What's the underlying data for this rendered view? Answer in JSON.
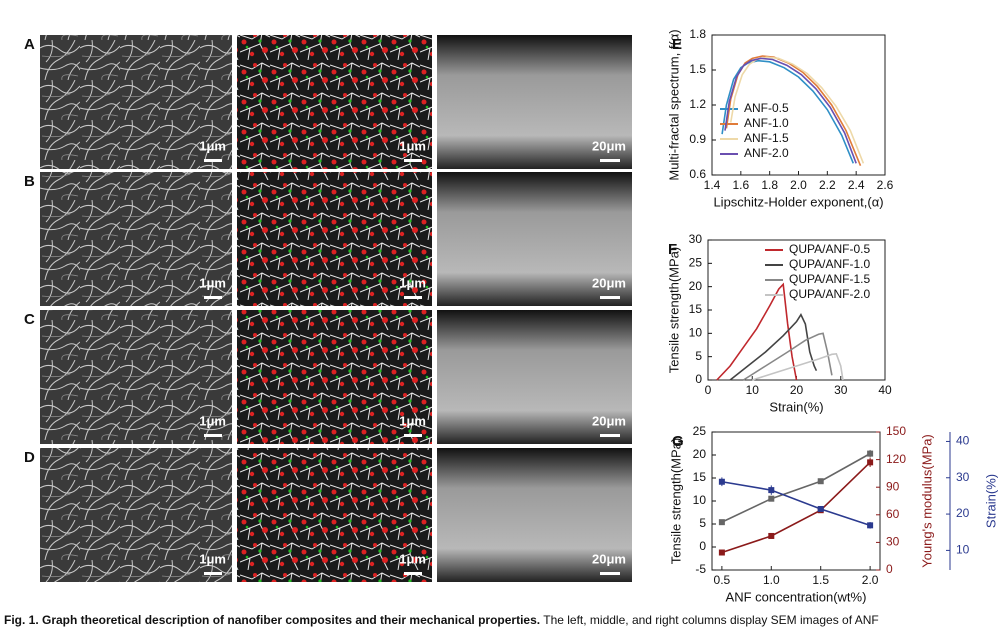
{
  "sem": {
    "rows": [
      {
        "label": "A",
        "scale_bars": [
          "1μm",
          "1μm",
          "20μm"
        ]
      },
      {
        "label": "B",
        "scale_bars": [
          "1μm",
          "1μm",
          "20μm"
        ]
      },
      {
        "label": "C",
        "scale_bars": [
          "1μm",
          "1μm",
          "20μm"
        ]
      },
      {
        "label": "D",
        "scale_bars": [
          "1μm",
          "1μm",
          "20μm"
        ]
      }
    ]
  },
  "chart_data": [
    {
      "type": "line",
      "label": "E",
      "xlabel": "Lipschitz-Holder exponent,(α)",
      "ylabel": "Multi-fractal spectrum, f(α)",
      "xlim": [
        1.4,
        2.6
      ],
      "xticks": [
        1.4,
        1.6,
        1.8,
        {
          "value": 2,
          "label": "2.0"
        },
        2.2,
        2.4,
        2.6
      ],
      "ylim": [
        0.6,
        1.8
      ],
      "yticks": [
        0.6,
        0.9,
        1.2,
        1.5,
        1.8
      ],
      "legend": "lower left",
      "series": [
        {
          "name": "ANF-0.5",
          "color": "#2f8fc6",
          "x": [
            1.47,
            1.5,
            1.55,
            1.6,
            1.65,
            1.72,
            1.8,
            1.9,
            2.0,
            2.1,
            2.2,
            2.3,
            2.38
          ],
          "values": [
            0.95,
            1.2,
            1.42,
            1.52,
            1.56,
            1.58,
            1.57,
            1.52,
            1.44,
            1.32,
            1.16,
            0.94,
            0.7
          ]
        },
        {
          "name": "ANF-1.0",
          "color": "#e07b39",
          "x": [
            1.5,
            1.53,
            1.58,
            1.63,
            1.68,
            1.75,
            1.83,
            1.93,
            2.03,
            2.13,
            2.23,
            2.33,
            2.43
          ],
          "values": [
            1.0,
            1.25,
            1.46,
            1.56,
            1.6,
            1.62,
            1.61,
            1.56,
            1.48,
            1.36,
            1.2,
            0.98,
            0.68
          ]
        },
        {
          "name": "ANF-1.5",
          "color": "#eed9a8",
          "x": [
            1.53,
            1.56,
            1.61,
            1.66,
            1.71,
            1.78,
            1.86,
            1.96,
            2.06,
            2.16,
            2.26,
            2.36,
            2.45
          ],
          "values": [
            1.05,
            1.27,
            1.46,
            1.55,
            1.59,
            1.61,
            1.6,
            1.55,
            1.47,
            1.35,
            1.19,
            0.98,
            0.7
          ]
        },
        {
          "name": "ANF-2.0",
          "color": "#6a4fb0",
          "x": [
            1.49,
            1.52,
            1.57,
            1.62,
            1.67,
            1.74,
            1.82,
            1.92,
            2.02,
            2.12,
            2.22,
            2.32,
            2.4
          ],
          "values": [
            0.98,
            1.23,
            1.44,
            1.54,
            1.58,
            1.6,
            1.59,
            1.54,
            1.46,
            1.34,
            1.18,
            0.96,
            0.7
          ]
        }
      ]
    },
    {
      "type": "line",
      "label": "F",
      "xlabel": "Strain(%)",
      "ylabel": "Tensile strength(MPa)",
      "xlim": [
        0,
        40
      ],
      "xticks": [
        0,
        10,
        20,
        30,
        40
      ],
      "ylim": [
        0,
        30
      ],
      "yticks": [
        0,
        5,
        10,
        15,
        20,
        25,
        30
      ],
      "legend": "upper right",
      "series": [
        {
          "name": "QUPA/ANF-0.5",
          "color": "#c0282d",
          "x": [
            2,
            5,
            8,
            11,
            14,
            16,
            17,
            18,
            19,
            20
          ],
          "values": [
            0,
            3,
            7,
            11,
            16,
            19.5,
            20.5,
            12,
            5,
            0
          ]
        },
        {
          "name": "QUPA/ANF-1.0",
          "color": "#444444",
          "x": [
            5,
            9,
            13,
            17,
            20,
            21,
            22,
            23,
            24,
            24.5
          ],
          "values": [
            0,
            3,
            6,
            9.5,
            12.5,
            14,
            12,
            6,
            3,
            2
          ]
        },
        {
          "name": "QUPA/ANF-1.5",
          "color": "#888888",
          "x": [
            8,
            13,
            18,
            22,
            25,
            26,
            27,
            28
          ],
          "values": [
            0,
            3,
            6,
            8.5,
            9.8,
            10,
            6,
            1
          ]
        },
        {
          "name": "QUPA/ANF-2.0",
          "color": "#c4c4c4",
          "x": [
            10,
            15,
            20,
            25,
            28,
            29,
            30,
            30.5
          ],
          "values": [
            0,
            1.5,
            3,
            4.5,
            5.5,
            5.6,
            3,
            0
          ]
        }
      ]
    },
    {
      "type": "line",
      "label": "G",
      "xlabel": "ANF concentration(wt%)",
      "ylabel": "Tensile strength(MPa)",
      "y2label": "Young's modulus(MPa)",
      "y3label": "Strain(%)",
      "markers": true,
      "xlim": [
        0.4,
        2.1
      ],
      "xticks": [
        0.5,
        {
          "value": 1,
          "label": "1.0"
        },
        1.5,
        {
          "value": 2,
          "label": "2.0"
        }
      ],
      "ylim": [
        -5,
        25
      ],
      "yticks": [
        -5,
        0,
        5,
        10,
        15,
        20,
        25
      ],
      "y2lim": [
        0,
        150
      ],
      "y2ticks": [
        0,
        30,
        60,
        90,
        120,
        150
      ],
      "y3lim": [
        4.6,
        42.6
      ],
      "y3ticks": [
        10,
        20,
        30,
        40
      ],
      "series": [
        {
          "color": "#666666",
          "x": [
            0.5,
            1,
            1.5,
            2
          ],
          "values": [
            5.4,
            10.5,
            14.3,
            20.3
          ],
          "errors": [
            0.3,
            0.5,
            0.6,
            0.8
          ]
        },
        {
          "color": "#8b1a1a",
          "axis": "y2",
          "x": [
            0.5,
            1,
            1.5,
            2
          ],
          "values": [
            19,
            37,
            65,
            117
          ],
          "errors": [
            2,
            2,
            3,
            5
          ]
        },
        {
          "color": "#2b3a8f",
          "axis": "y3",
          "x": [
            0.5,
            1,
            1.5,
            2
          ],
          "values": [
            28.9,
            26.6,
            21.4,
            16.9
          ],
          "errors": [
            1.2,
            1.3,
            0.8,
            0.9
          ]
        }
      ]
    }
  ],
  "caption": {
    "lead": "Fig. 1. Graph theoretical description of nanofiber composites and their mechanical properties.",
    "text": "The left, middle, and right columns display SEM images of ANF"
  }
}
